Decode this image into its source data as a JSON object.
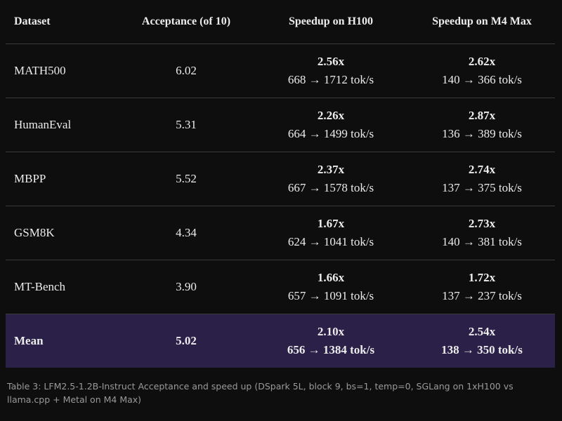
{
  "table": {
    "header": [
      "Dataset",
      "Acceptance (of 10)",
      "Speedup on H100",
      "Speedup on M4 Max"
    ],
    "rows": [
      [
        "MATH500",
        "6.02",
        "2.56x",
        "668 → 1712 tok/s",
        "2.62x",
        "140 → 366 tok/s"
      ],
      [
        "HumanEval",
        "5.31",
        "2.26x",
        "664 → 1499 tok/s",
        "2.87x",
        "136 → 389 tok/s"
      ],
      [
        "MBPP",
        "5.52",
        "2.37x",
        "667 → 1578 tok/s",
        "2.74x",
        "137 → 375 tok/s"
      ],
      [
        "GSM8K",
        "4.34",
        "1.67x",
        "624 → 1041 tok/s",
        "2.73x",
        "140 → 381 tok/s"
      ],
      [
        "MT-Bench",
        "3.90",
        "1.66x",
        "657 → 1091 tok/s",
        "1.72x",
        "137 → 237 tok/s"
      ],
      [
        "Mean",
        "5.02",
        "2.10x",
        "656 → 1384 tok/s",
        "2.54x",
        "138 → 350 tok/s"
      ]
    ]
  },
  "caption": "Table 3: LFM2.5-1.2B-Instruct Acceptance and speed up (DSpark 5L, block 9, bs=1, temp=0, SGLang on 1xH100 vs llama.cpp + Metal on M4 Max)"
}
